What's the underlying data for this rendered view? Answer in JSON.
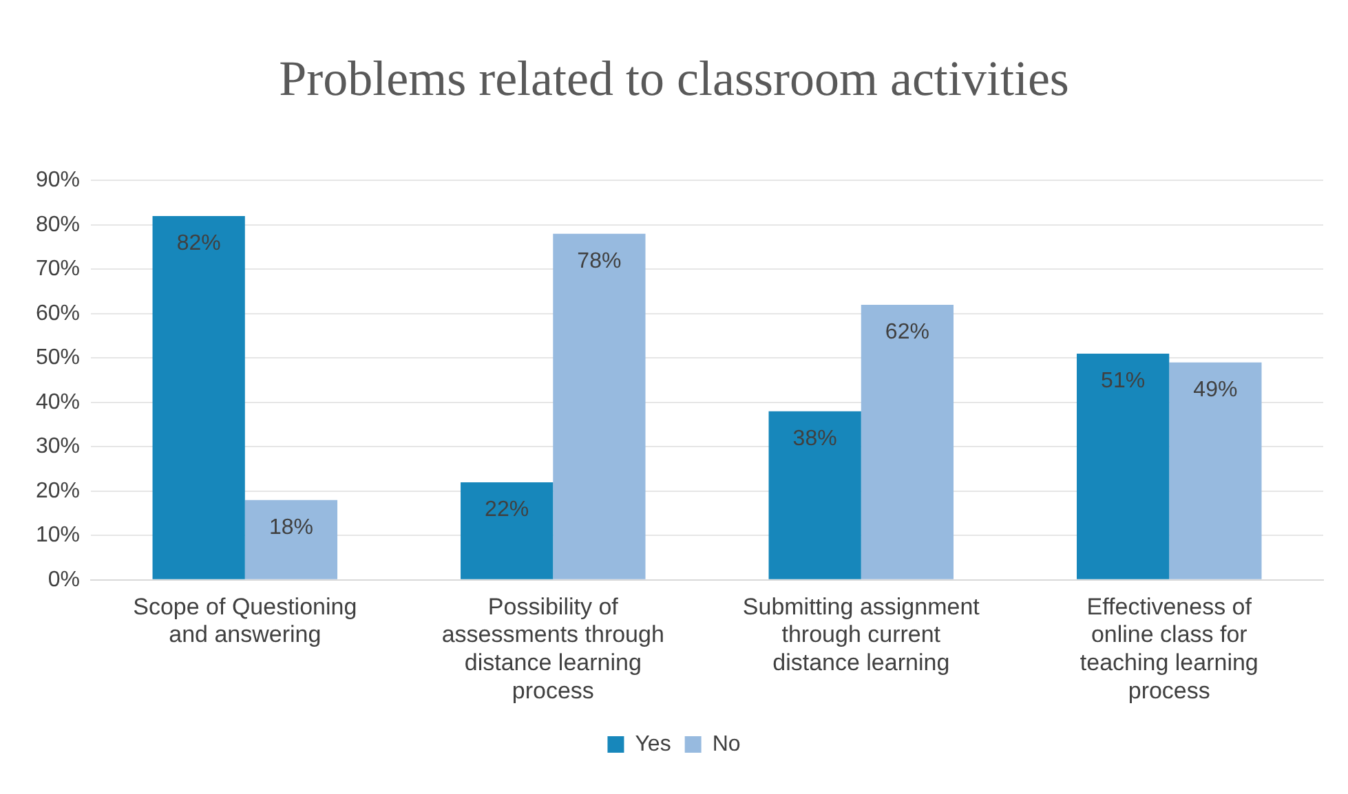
{
  "chart_data": {
    "type": "bar",
    "title": "Problems related to classroom activities",
    "categories": [
      "Scope of Questioning and answering",
      "Possibility of assessments through distance learning process",
      "Submitting assignment through current distance learning",
      "Effectiveness of online class for teaching learning process"
    ],
    "series": [
      {
        "name": "Yes",
        "color": "#1787bb",
        "values": [
          82,
          22,
          38,
          51
        ],
        "value_labels": [
          "82%",
          "22%",
          "38%",
          "51%"
        ]
      },
      {
        "name": "No",
        "color": "#97badf",
        "values": [
          18,
          78,
          62,
          49
        ],
        "value_labels": [
          "18%",
          "78%",
          "62%",
          "49%"
        ]
      }
    ],
    "ylim": [
      0,
      90
    ],
    "yticks": [
      {
        "value": 0,
        "label": "0%"
      },
      {
        "value": 10,
        "label": "10%"
      },
      {
        "value": 20,
        "label": "20%"
      },
      {
        "value": 30,
        "label": "30%"
      },
      {
        "value": 40,
        "label": "40%"
      },
      {
        "value": 50,
        "label": "50%"
      },
      {
        "value": 60,
        "label": "60%"
      },
      {
        "value": 70,
        "label": "70%"
      },
      {
        "value": 80,
        "label": "80%"
      },
      {
        "value": 90,
        "label": "90%"
      }
    ],
    "grid": "y",
    "legend": "bottom"
  }
}
